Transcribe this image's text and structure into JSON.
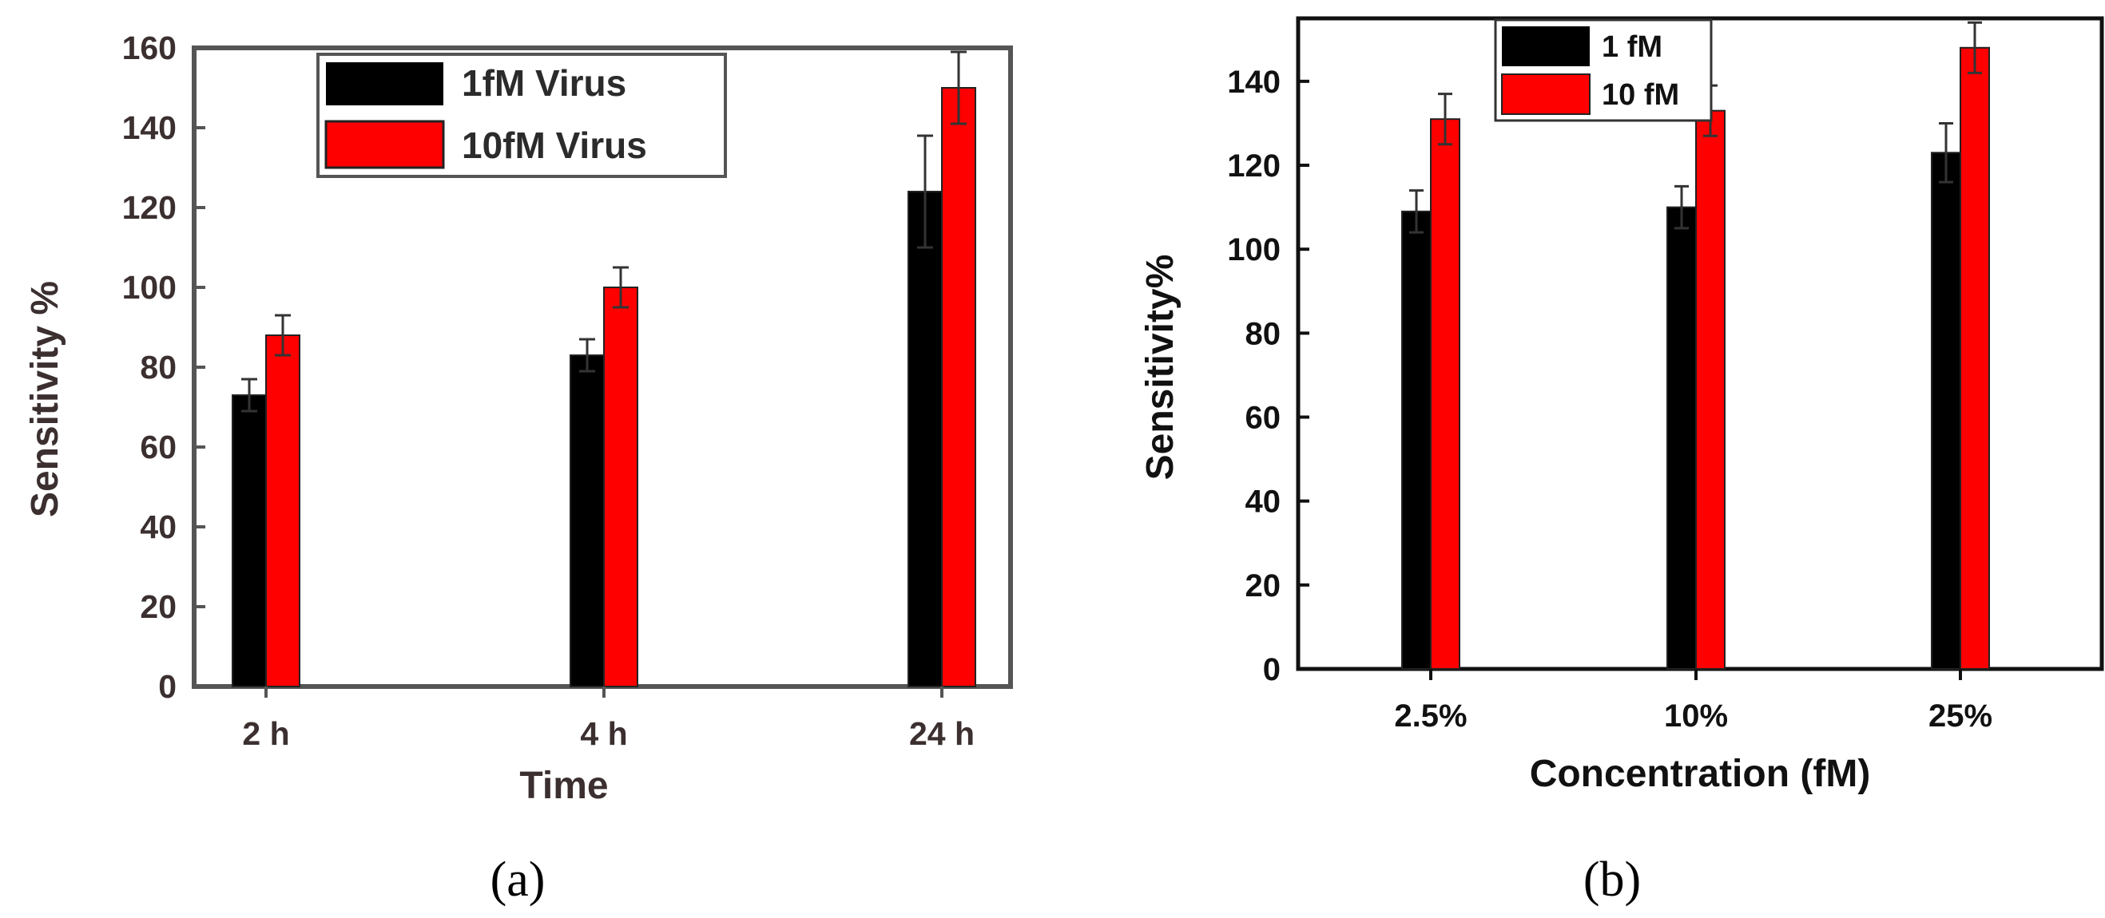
{
  "chart_data": [
    {
      "type": "bar",
      "panel_label": "(a)",
      "categories": [
        "2 h",
        "4 h",
        "24 h"
      ],
      "series": [
        {
          "name": "1fM Virus",
          "color": "#000000",
          "values": [
            73,
            83,
            124
          ],
          "errors": [
            4,
            4,
            14
          ]
        },
        {
          "name": "10fM Virus",
          "color": "#ff0000",
          "values": [
            88,
            100,
            150
          ],
          "errors": [
            5,
            5,
            9
          ]
        }
      ],
      "xlabel": "Time",
      "ylabel": "Sensitivity %",
      "ylim": [
        0,
        160
      ],
      "yticks": [
        "0",
        "20",
        "40",
        "60",
        "80",
        "100",
        "120",
        "140",
        "160"
      ],
      "legend_position": "top-center",
      "grid": false
    },
    {
      "type": "bar",
      "panel_label": "(b)",
      "categories": [
        "2.5%",
        "10%",
        "25%"
      ],
      "series": [
        {
          "name": "1 fM",
          "color": "#000000",
          "values": [
            109,
            110,
            123
          ],
          "errors": [
            5,
            5,
            7
          ]
        },
        {
          "name": "10 fM",
          "color": "#ff0000",
          "values": [
            131,
            133,
            148
          ],
          "errors": [
            6,
            6,
            6
          ]
        }
      ],
      "xlabel": "Concentration (fM)",
      "ylabel": "Sensitivity%",
      "ylim": [
        0,
        155
      ],
      "yticks": [
        "0",
        "20",
        "40",
        "60",
        "80",
        "100",
        "120",
        "140"
      ],
      "legend_position": "top-left",
      "grid": false
    }
  ]
}
